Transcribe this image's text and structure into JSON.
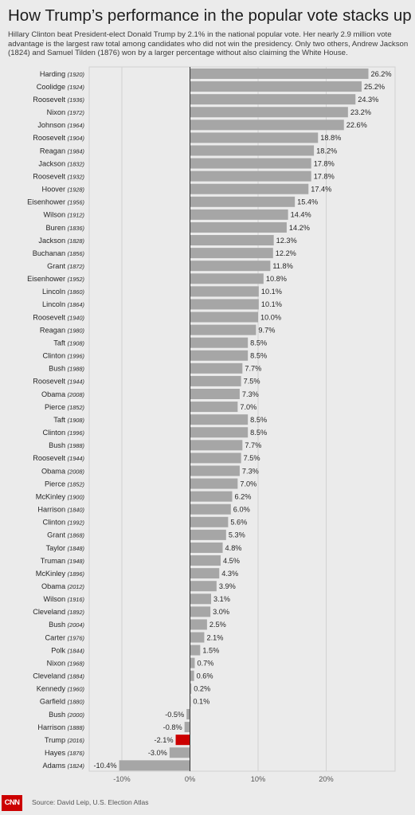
{
  "header": {
    "title": "How Trump’s performance in the popular vote stacks up",
    "subtitle": "Hillary Clinton beat President-elect Donald Trump by 2.1% in the national popular vote. Her nearly 2.9 million vote advantage is the largest raw total among candidates who did not win the presidency. Only two others, Andrew Jackson (1824) and Samuel Tilden (1876) won by a larger percentage without also claiming the White House."
  },
  "footer": {
    "logo": "CNN",
    "source": "Source: David Leip, U.S. Election Atlas"
  },
  "colors": {
    "bar": "#a6a6a6",
    "highlight": "#cc0000",
    "background": "#ebebeb",
    "grid": "#d2d2d2",
    "zero_line": "#333333"
  },
  "chart_data": {
    "type": "bar",
    "orientation": "horizontal",
    "xlim": [
      -13,
      30
    ],
    "xticks": [
      -10,
      0,
      10,
      20
    ],
    "xtick_labels": [
      "-10%",
      "0%",
      "10%",
      "20%"
    ],
    "grid": true,
    "highlight": "Trump (2016)",
    "categories": [
      {
        "name": "Harding",
        "year": "(1920)"
      },
      {
        "name": "Coolidge",
        "year": "(1924)"
      },
      {
        "name": "Roosevelt",
        "year": "(1936)"
      },
      {
        "name": "Nixon",
        "year": "(1972)"
      },
      {
        "name": "Johnson",
        "year": "(1964)"
      },
      {
        "name": "Roosevelt",
        "year": "(1904)"
      },
      {
        "name": "Reagan",
        "year": "(1984)"
      },
      {
        "name": "Jackson",
        "year": "(1832)"
      },
      {
        "name": "Roosevelt",
        "year": "(1932)"
      },
      {
        "name": "Hoover",
        "year": "(1928)"
      },
      {
        "name": "Eisenhower",
        "year": "(1956)"
      },
      {
        "name": "Wilson",
        "year": "(1912)"
      },
      {
        "name": "Buren",
        "year": "(1836)"
      },
      {
        "name": "Jackson",
        "year": "(1828)"
      },
      {
        "name": "Buchanan",
        "year": "(1856)"
      },
      {
        "name": "Grant",
        "year": "(1872)"
      },
      {
        "name": "Eisenhower",
        "year": "(1952)"
      },
      {
        "name": "Lincoln",
        "year": "(1860)"
      },
      {
        "name": "Lincoln",
        "year": "(1864)"
      },
      {
        "name": "Roosevelt",
        "year": "(1940)"
      },
      {
        "name": "Reagan",
        "year": "(1980)"
      },
      {
        "name": "Taft",
        "year": "(1908)"
      },
      {
        "name": "Clinton",
        "year": "(1996)"
      },
      {
        "name": "Bush",
        "year": "(1988)"
      },
      {
        "name": "Roosevelt",
        "year": "(1944)"
      },
      {
        "name": "Obama",
        "year": "(2008)"
      },
      {
        "name": "Pierce",
        "year": "(1852)"
      },
      {
        "name": "Taft",
        "year": "(1908)"
      },
      {
        "name": "Clinton",
        "year": "(1996)"
      },
      {
        "name": "Bush",
        "year": "(1988)"
      },
      {
        "name": "Roosevelt",
        "year": "(1944)"
      },
      {
        "name": "Obama",
        "year": "(2008)"
      },
      {
        "name": "Pierce",
        "year": "(1852)"
      },
      {
        "name": "McKinley",
        "year": "(1900)"
      },
      {
        "name": "Harrison",
        "year": "(1840)"
      },
      {
        "name": "Clinton",
        "year": "(1992)"
      },
      {
        "name": "Grant",
        "year": "(1868)"
      },
      {
        "name": "Taylor",
        "year": "(1848)"
      },
      {
        "name": "Truman",
        "year": "(1948)"
      },
      {
        "name": "McKinley",
        "year": "(1896)"
      },
      {
        "name": "Obama",
        "year": "(2012)"
      },
      {
        "name": "Wilson",
        "year": "(1916)"
      },
      {
        "name": "Cleveland",
        "year": "(1892)"
      },
      {
        "name": "Bush",
        "year": "(2004)"
      },
      {
        "name": "Carter",
        "year": "(1976)"
      },
      {
        "name": "Polk",
        "year": "(1844)"
      },
      {
        "name": "Nixon",
        "year": "(1968)"
      },
      {
        "name": "Cleveland",
        "year": "(1884)"
      },
      {
        "name": "Kennedy",
        "year": "(1960)"
      },
      {
        "name": "Garfield",
        "year": "(1880)"
      },
      {
        "name": "Bush",
        "year": "(2000)"
      },
      {
        "name": "Harrison",
        "year": "(1888)"
      },
      {
        "name": "Trump",
        "year": "(2016)"
      },
      {
        "name": "Hayes",
        "year": "(1876)"
      },
      {
        "name": "Adams",
        "year": "(1824)"
      }
    ],
    "values": [
      26.2,
      25.2,
      24.3,
      23.2,
      22.6,
      18.8,
      18.2,
      17.8,
      17.8,
      17.4,
      15.4,
      14.4,
      14.2,
      12.3,
      12.2,
      11.8,
      10.8,
      10.1,
      10.1,
      10.0,
      9.7,
      8.5,
      8.5,
      7.7,
      7.5,
      7.3,
      7.0,
      8.5,
      8.5,
      7.7,
      7.5,
      7.3,
      7.0,
      6.2,
      6.0,
      5.6,
      5.3,
      4.8,
      4.5,
      4.3,
      3.9,
      3.1,
      3.0,
      2.5,
      2.1,
      1.5,
      0.7,
      0.6,
      0.2,
      0.1,
      -0.5,
      -0.8,
      -2.1,
      -3.0,
      -10.4
    ],
    "value_labels": [
      "26.2%",
      "25.2%",
      "24.3%",
      "23.2%",
      "22.6%",
      "18.8%",
      "18.2%",
      "17.8%",
      "17.8%",
      "17.4%",
      "15.4%",
      "14.4%",
      "14.2%",
      "12.3%",
      "12.2%",
      "11.8%",
      "10.8%",
      "10.1%",
      "10.1%",
      "10.0%",
      "9.7%",
      "8.5%",
      "8.5%",
      "7.7%",
      "7.5%",
      "7.3%",
      "7.0%",
      "8.5%",
      "8.5%",
      "7.7%",
      "7.5%",
      "7.3%",
      "7.0%",
      "6.2%",
      "6.0%",
      "5.6%",
      "5.3%",
      "4.8%",
      "4.5%",
      "4.3%",
      "3.9%",
      "3.1%",
      "3.0%",
      "2.5%",
      "2.1%",
      "1.5%",
      "0.7%",
      "0.6%",
      "0.2%",
      "0.1%",
      "-0.5%",
      "-0.8%",
      "-2.1%",
      "-3.0%",
      "-10.4%"
    ]
  }
}
